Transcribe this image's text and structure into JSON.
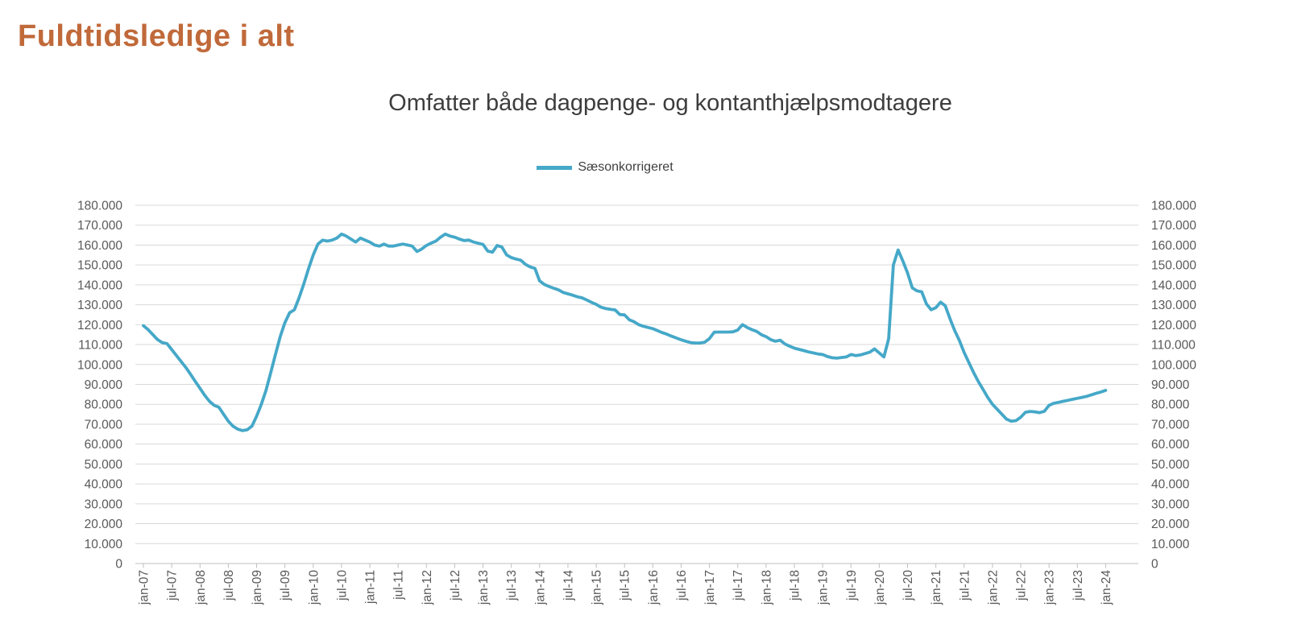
{
  "page": {
    "title": "Fuldtidsledige i alt"
  },
  "chart": {
    "subtitle": "Omfatter både dagpenge- og kontanthjælpsmodtagere",
    "legend": {
      "label": "Sæsonkorrigeret"
    }
  },
  "colors": {
    "title": "#c0693a",
    "series": "#45a8c8",
    "gridline": "#d9d9d9",
    "axis_line": "#bfbfbf",
    "axis_text": "#595959",
    "subtitle_text": "#3d3d3d"
  },
  "chart_data": {
    "type": "line",
    "title": "Omfatter både dagpenge- og kontanthjælpsmodtagere",
    "xlabel": "",
    "ylabel": "",
    "x_unit": "month",
    "x_start_label": "jan-07",
    "x_end_label": "jan-24",
    "x_tick_labels": [
      "jan-07",
      "jul-07",
      "jan-08",
      "jul-08",
      "jan-09",
      "jul-09",
      "jan-10",
      "jul-10",
      "jan-11",
      "jul-11",
      "jan-12",
      "jul-12",
      "jan-13",
      "jul-13",
      "jan-14",
      "jul-14",
      "jan-15",
      "jul-15",
      "jan-16",
      "jul-16",
      "jan-17",
      "jul-17",
      "jan-18",
      "jul-18",
      "jan-19",
      "jul-19",
      "jan-20",
      "jul-20",
      "jan-21",
      "jul-21",
      "jan-22",
      "jul-22",
      "jan-23",
      "jul-23",
      "jan-24"
    ],
    "y_ticks": [
      0,
      10000,
      20000,
      30000,
      40000,
      50000,
      60000,
      70000,
      80000,
      90000,
      100000,
      110000,
      120000,
      130000,
      140000,
      150000,
      160000,
      170000,
      180000
    ],
    "y_tick_labels": [
      "0",
      "10.000",
      "20.000",
      "30.000",
      "40.000",
      "50.000",
      "60.000",
      "70.000",
      "80.000",
      "90.000",
      "100.000",
      "110.000",
      "120.000",
      "130.000",
      "140.000",
      "150.000",
      "160.000",
      "170.000",
      "180.000"
    ],
    "ylim": [
      0,
      180000
    ],
    "grid": "horizontal",
    "legend_position": "top-center",
    "y_axis_sides": [
      "left",
      "right"
    ],
    "series": [
      {
        "name": "Sæsonkorrigeret",
        "start": "jan-07",
        "step_months": 1,
        "values": [
          119500,
          117500,
          115000,
          112500,
          111000,
          110500,
          107500,
          104500,
          101500,
          98500,
          95000,
          91500,
          88000,
          84500,
          81500,
          79500,
          78500,
          75000,
          71500,
          69000,
          67500,
          66800,
          67200,
          69000,
          74000,
          80000,
          87000,
          96000,
          105000,
          114000,
          121000,
          126000,
          127500,
          133500,
          140500,
          148000,
          155000,
          160500,
          162500,
          162000,
          162500,
          163500,
          165500,
          164500,
          163000,
          161500,
          163500,
          162500,
          161500,
          160000,
          159500,
          160500,
          159500,
          159500,
          160000,
          160500,
          160000,
          159500,
          156800,
          158000,
          159800,
          161000,
          162000,
          164000,
          165500,
          164500,
          164000,
          163000,
          162300,
          162500,
          161500,
          160900,
          160300,
          157000,
          156400,
          159800,
          159000,
          155100,
          153700,
          153000,
          152400,
          150300,
          149000,
          148300,
          142000,
          140200,
          139200,
          138300,
          137500,
          136200,
          135500,
          134800,
          134000,
          133500,
          132400,
          131200,
          130200,
          128800,
          128100,
          127700,
          127400,
          125100,
          124900,
          122500,
          121500,
          120000,
          119200,
          118600,
          118000,
          117000,
          116000,
          115200,
          114200,
          113300,
          112400,
          111700,
          111000,
          110800,
          110800,
          111200,
          113000,
          116200,
          116300,
          116300,
          116300,
          116400,
          117300,
          120000,
          118600,
          117500,
          116600,
          115000,
          114000,
          112500,
          111700,
          112200,
          110300,
          109200,
          108200,
          107600,
          107000,
          106300,
          105800,
          105300,
          105000,
          104000,
          103400,
          103200,
          103500,
          103800,
          105000,
          104500,
          104800,
          105500,
          106200,
          107800,
          105800,
          103800,
          113000,
          150000,
          157500,
          152000,
          146000,
          138500,
          137000,
          136500,
          130500,
          127500,
          128500,
          131300,
          129500,
          123000,
          117000,
          112000,
          106000,
          101000,
          96000,
          91500,
          87500,
          83500,
          80000,
          77500,
          75000,
          72500,
          71500,
          71800,
          73500,
          76000,
          76400,
          76200,
          75800,
          76500,
          79500,
          80500,
          81000,
          81500,
          82000,
          82500,
          83000,
          83500,
          84000,
          84800,
          85500,
          86200,
          87000
        ]
      }
    ]
  }
}
